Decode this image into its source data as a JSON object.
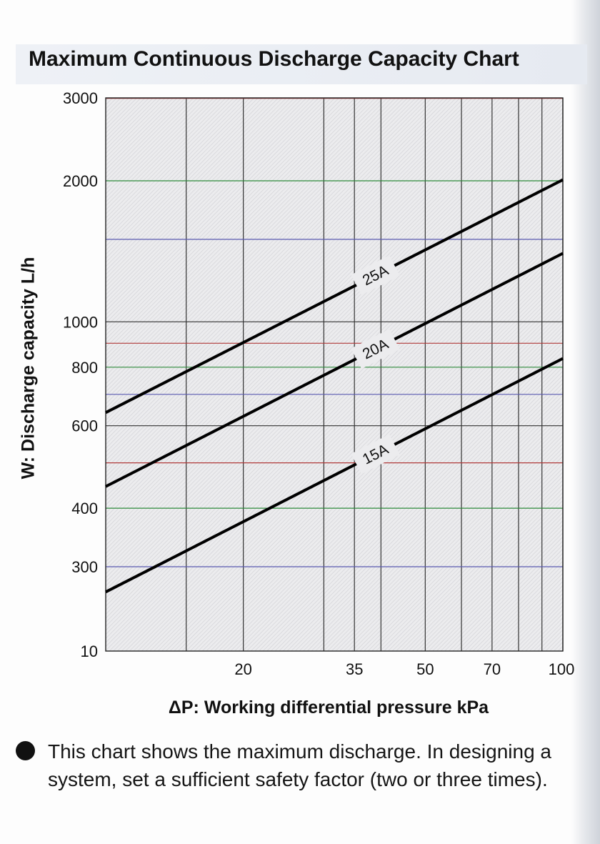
{
  "title": "Maximum Continuous Discharge Capacity Chart",
  "note": "This chart shows the maximum discharge. In designing a system, set a sufficient safety factor (two or three times).",
  "chart_data": {
    "type": "line",
    "title": "Maximum Continuous Discharge Capacity Chart",
    "xlabel": "ΔP: Working differential pressure kPa",
    "ylabel": "W: Discharge capacity L/h",
    "x_ticks": [
      "20",
      "35",
      "50",
      "70",
      "100"
    ],
    "y_ticks": [
      "10",
      "300",
      "400",
      "600",
      "800",
      "1000",
      "2000",
      "3000"
    ],
    "x_scale": "log",
    "y_scale": "log",
    "xlim": [
      10,
      100
    ],
    "ylim_ticks": [
      "10",
      "3000"
    ],
    "grid": true,
    "legend": "inline labels on lines",
    "series": [
      {
        "name": "25A",
        "x": [
          10,
          100
        ],
        "y": [
          640,
          2010
        ]
      },
      {
        "name": "20A",
        "x": [
          10,
          100
        ],
        "y": [
          445,
          1400
        ]
      },
      {
        "name": "15A",
        "x": [
          10,
          100
        ],
        "y": [
          265,
          835
        ]
      }
    ]
  },
  "colors": {
    "plot_background": "#ececee",
    "grid_major": "#333333",
    "curves": "#000000"
  }
}
